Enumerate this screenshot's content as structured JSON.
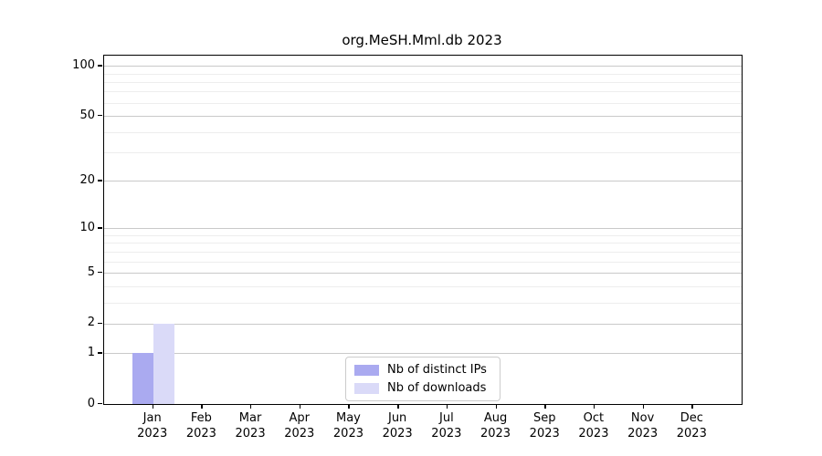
{
  "figure": {
    "title": "org.MeSH.Mml.db 2023",
    "background": "#ffffff"
  },
  "colors": {
    "bar_distinct_ips": "#aaaaf0",
    "bar_downloads": "#dadaf8",
    "grid_major": "#c9c9c9",
    "grid_minor": "#ededed",
    "axis": "#000000",
    "legend_border": "#cccccc",
    "text": "#000000"
  },
  "chart_data": {
    "type": "bar",
    "title": "org.MeSH.Mml.db 2023",
    "categories": [
      "Jan",
      "Feb",
      "Mar",
      "Apr",
      "May",
      "Jun",
      "Jul",
      "Aug",
      "Sep",
      "Oct",
      "Nov",
      "Dec"
    ],
    "xtick_year": "2023",
    "series": [
      {
        "name": "Nb of distinct IPs",
        "color": "#aaaaf0",
        "values": [
          1,
          0,
          0,
          0,
          0,
          0,
          0,
          0,
          0,
          0,
          0,
          0
        ]
      },
      {
        "name": "Nb of downloads",
        "color": "#dadaf8",
        "values": [
          2,
          0,
          0,
          0,
          0,
          0,
          0,
          0,
          0,
          0,
          0,
          0
        ]
      }
    ],
    "xlabel": "",
    "ylabel": "",
    "yscale": "log1p",
    "yticks": [
      0,
      1,
      2,
      5,
      10,
      20,
      50,
      100
    ],
    "yticks_minor": [
      3,
      4,
      6,
      7,
      8,
      9,
      30,
      40,
      60,
      70,
      80,
      90
    ],
    "ylim": [
      0,
      115
    ],
    "xlim": [
      -1,
      12
    ],
    "grid": "horizontal",
    "legend_position": "lower center"
  }
}
